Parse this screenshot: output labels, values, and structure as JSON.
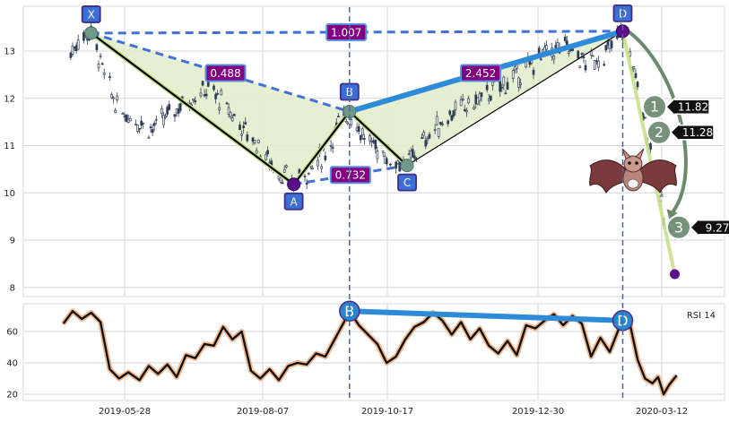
{
  "chart_data": {
    "type": "line",
    "subtype": "candlestick-with-bat-harmonic-pattern",
    "x_tick_labels": [
      "2019-05-28",
      "2019-08-07",
      "2019-10-17",
      "2019-12-30",
      "2020-03-12"
    ],
    "price_panel": {
      "ylim": [
        7.8,
        13.8
      ],
      "y_ticks": [
        8,
        9,
        10,
        11,
        12,
        13
      ],
      "y_tick_labels": [
        "8",
        "9",
        "10",
        "11",
        "12",
        "13"
      ],
      "grid": true,
      "pattern_points": [
        {
          "label": "X",
          "date": "2019-05-10",
          "price": 13.38
        },
        {
          "label": "A",
          "date": "2019-08-27",
          "price": 10.18
        },
        {
          "label": "B",
          "date": "2019-09-26",
          "price": 11.72
        },
        {
          "label": "C",
          "date": "2019-10-27",
          "price": 10.58
        },
        {
          "label": "D",
          "date": "2020-02-20",
          "price": 13.42
        }
      ],
      "ratios": [
        {
          "text": "0.488",
          "from": "X",
          "to": "B"
        },
        {
          "text": "0.732",
          "from": "A",
          "to": "C"
        },
        {
          "text": "2.452",
          "from": "B",
          "to": "D"
        },
        {
          "text": "1.007",
          "from": "X",
          "to": "D"
        }
      ],
      "targets": [
        {
          "label": "1",
          "value": "11.82",
          "price": 11.82
        },
        {
          "label": "2",
          "value": "11.28",
          "price": 11.28
        },
        {
          "label": "3",
          "value": "9.27",
          "price": 9.27
        }
      ],
      "projected_end": {
        "date": "2020-03-19",
        "price": 8.28
      },
      "candle_anchors": [
        [
          "2019-04-29",
          12.95
        ],
        [
          "2019-05-03",
          13.25
        ],
        [
          "2019-05-10",
          13.4
        ],
        [
          "2019-05-17",
          12.5
        ],
        [
          "2019-05-24",
          11.8
        ],
        [
          "2019-06-03",
          11.55
        ],
        [
          "2019-06-12",
          11.35
        ],
        [
          "2019-06-22",
          11.7
        ],
        [
          "2019-07-02",
          12.0
        ],
        [
          "2019-07-12",
          12.2
        ],
        [
          "2019-07-20",
          11.9
        ],
        [
          "2019-07-30",
          11.4
        ],
        [
          "2019-08-07",
          11.05
        ],
        [
          "2019-08-17",
          10.5
        ],
        [
          "2019-08-27",
          10.2
        ],
        [
          "2019-09-05",
          10.5
        ],
        [
          "2019-09-14",
          10.9
        ],
        [
          "2019-09-20",
          11.45
        ],
        [
          "2019-09-26",
          11.72
        ],
        [
          "2019-10-05",
          11.1
        ],
        [
          "2019-10-16",
          10.8
        ],
        [
          "2019-10-27",
          10.6
        ],
        [
          "2019-11-07",
          11.2
        ],
        [
          "2019-11-20",
          11.7
        ],
        [
          "2019-12-02",
          11.9
        ],
        [
          "2019-12-14",
          12.2
        ],
        [
          "2019-12-26",
          12.5
        ],
        [
          "2020-01-09",
          12.95
        ],
        [
          "2020-01-21",
          13.1
        ],
        [
          "2020-01-31",
          12.75
        ],
        [
          "2020-02-10",
          12.9
        ],
        [
          "2020-02-20",
          13.42
        ],
        [
          "2020-02-26",
          12.6
        ],
        [
          "2020-03-04",
          11.3
        ],
        [
          "2020-03-10",
          10.3
        ],
        [
          "2020-03-13",
          9.4
        ]
      ]
    },
    "rsi_panel": {
      "label": "RSI 14",
      "ylim": [
        17,
        78
      ],
      "y_ticks": [
        20,
        40,
        60
      ],
      "y_tick_labels": [
        "20",
        "40",
        "60"
      ],
      "divergence_points": [
        {
          "label": "B",
          "date": "2019-09-26",
          "value": 73
        },
        {
          "label": "D",
          "date": "2020-02-20",
          "value": 67
        }
      ],
      "values": [
        [
          "2019-04-25",
          65
        ],
        [
          "2019-04-30",
          73
        ],
        [
          "2019-05-05",
          68
        ],
        [
          "2019-05-10",
          72
        ],
        [
          "2019-05-15",
          66
        ],
        [
          "2019-05-20",
          36
        ],
        [
          "2019-05-25",
          30
        ],
        [
          "2019-05-30",
          34
        ],
        [
          "2019-06-05",
          29
        ],
        [
          "2019-06-10",
          38
        ],
        [
          "2019-06-15",
          33
        ],
        [
          "2019-06-20",
          39
        ],
        [
          "2019-06-25",
          31
        ],
        [
          "2019-06-30",
          45
        ],
        [
          "2019-07-05",
          43
        ],
        [
          "2019-07-10",
          52
        ],
        [
          "2019-07-15",
          51
        ],
        [
          "2019-07-20",
          63
        ],
        [
          "2019-07-25",
          55
        ],
        [
          "2019-07-30",
          60
        ],
        [
          "2019-08-04",
          35
        ],
        [
          "2019-08-09",
          30
        ],
        [
          "2019-08-14",
          36
        ],
        [
          "2019-08-19",
          29
        ],
        [
          "2019-08-24",
          38
        ],
        [
          "2019-08-29",
          40
        ],
        [
          "2019-09-03",
          39
        ],
        [
          "2019-09-08",
          46
        ],
        [
          "2019-09-13",
          44
        ],
        [
          "2019-09-18",
          55
        ],
        [
          "2019-09-23",
          66
        ],
        [
          "2019-09-26",
          73
        ],
        [
          "2019-10-01",
          64
        ],
        [
          "2019-10-06",
          58
        ],
        [
          "2019-10-11",
          52
        ],
        [
          "2019-10-16",
          40
        ],
        [
          "2019-10-21",
          44
        ],
        [
          "2019-10-26",
          55
        ],
        [
          "2019-10-31",
          63
        ],
        [
          "2019-11-05",
          66
        ],
        [
          "2019-11-10",
          72
        ],
        [
          "2019-11-15",
          67
        ],
        [
          "2019-11-20",
          58
        ],
        [
          "2019-11-25",
          66
        ],
        [
          "2019-11-30",
          55
        ],
        [
          "2019-12-05",
          62
        ],
        [
          "2019-12-10",
          51
        ],
        [
          "2019-12-15",
          46
        ],
        [
          "2019-12-20",
          54
        ],
        [
          "2019-12-25",
          45
        ],
        [
          "2019-12-30",
          64
        ],
        [
          "2020-01-04",
          62
        ],
        [
          "2020-01-09",
          67
        ],
        [
          "2020-01-14",
          71
        ],
        [
          "2020-01-19",
          64
        ],
        [
          "2020-01-24",
          70
        ],
        [
          "2020-01-29",
          65
        ],
        [
          "2020-02-03",
          44
        ],
        [
          "2020-02-08",
          56
        ],
        [
          "2020-02-13",
          47
        ],
        [
          "2020-02-18",
          62
        ],
        [
          "2020-02-20",
          67
        ],
        [
          "2020-02-24",
          64
        ],
        [
          "2020-02-28",
          42
        ],
        [
          "2020-03-03",
          30
        ],
        [
          "2020-03-07",
          27
        ],
        [
          "2020-03-10",
          31
        ],
        [
          "2020-03-13",
          20
        ],
        [
          "2020-03-16",
          26
        ],
        [
          "2020-03-20",
          32
        ]
      ]
    },
    "colors": {
      "pattern_fill": "#e2edcc",
      "leg_line": "#000000",
      "leg_edge": "#c8e08a",
      "ratio_line": "#3f71d8",
      "bd_line": "#2e8bd8",
      "point_label_bg": "#3b6fd6",
      "point_label_border": "#3d2e8a",
      "ratio_label_bg": "#800080",
      "target_circle": "#77927a",
      "target_arrow": "#111111",
      "dark_point": "#5b0e8a",
      "teal_point": "#6f9a8a",
      "candle": "#2f3e55",
      "rsi_line": "#111111",
      "rsi_glow": "#f2b891",
      "divergence_circle": "#2b86cf",
      "dashed_vline": "#46689a"
    }
  }
}
